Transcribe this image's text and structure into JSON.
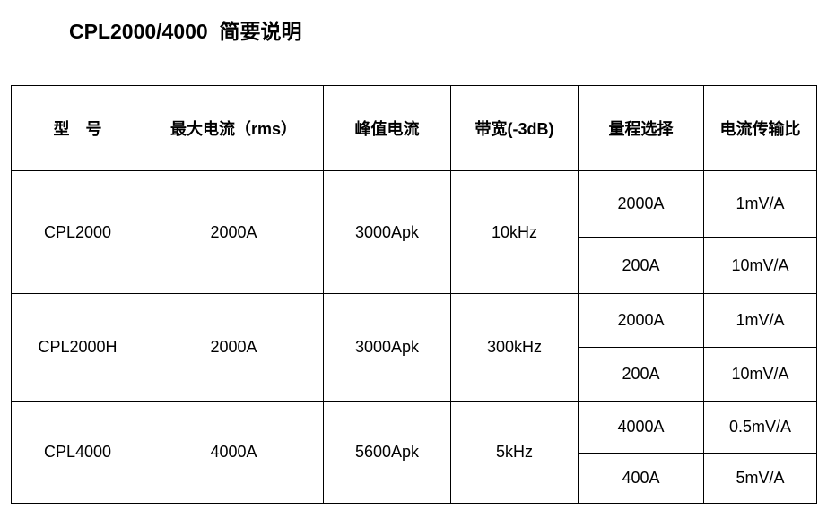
{
  "title": "CPL2000/4000  简要说明",
  "table": {
    "headers": [
      "型　号",
      "最大电流（rms）",
      "峰值电流",
      "带宽(-3dB)",
      "量程选择",
      "电流传输比"
    ],
    "rows": [
      {
        "model": "CPL2000",
        "max_current": "2000A",
        "peak_current": "3000Apk",
        "bandwidth": "10kHz",
        "ranges": [
          {
            "range": "2000A",
            "ratio": "1mV/A"
          },
          {
            "range": "200A",
            "ratio": "10mV/A"
          }
        ]
      },
      {
        "model": "CPL2000H",
        "max_current": "2000A",
        "peak_current": "3000Apk",
        "bandwidth": "300kHz",
        "ranges": [
          {
            "range": "2000A",
            "ratio": "1mV/A"
          },
          {
            "range": "200A",
            "ratio": "10mV/A"
          }
        ]
      },
      {
        "model": "CPL4000",
        "max_current": "4000A",
        "peak_current": "5600Apk",
        "bandwidth": "5kHz",
        "ranges": [
          {
            "range": "4000A",
            "ratio": "0.5mV/A"
          },
          {
            "range": "400A",
            "ratio": "5mV/A"
          }
        ]
      }
    ]
  }
}
